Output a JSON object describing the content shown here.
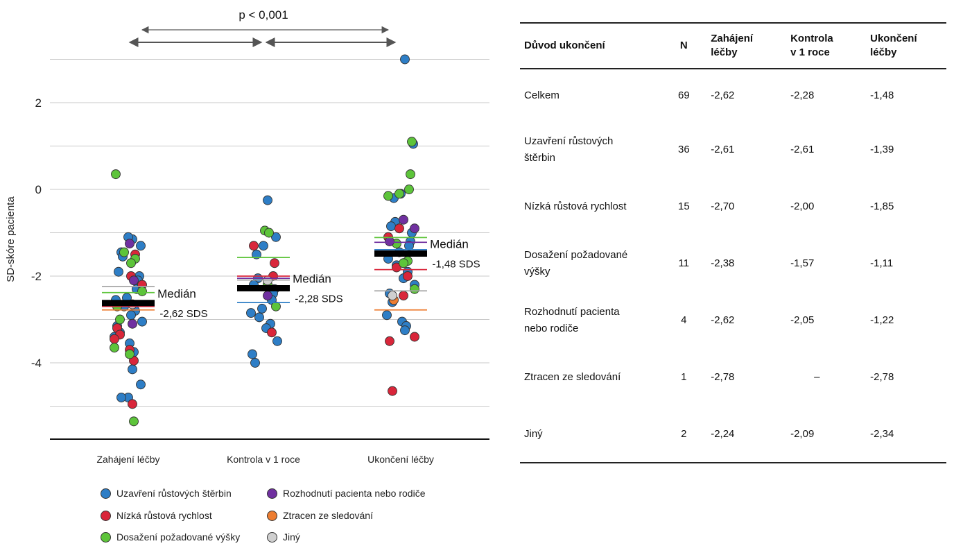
{
  "chart_data": {
    "type": "scatter",
    "ylabel": "SD-skóre pacienta",
    "yticks": [
      2,
      0,
      -2,
      -4
    ],
    "ylim": [
      -5.8,
      3.4
    ],
    "categories": [
      "Zahájení léčby",
      "Kontrola v 1 roce",
      "Ukončení léčby"
    ],
    "significance": "p < 0,001",
    "medians": [
      {
        "category": "Zahájení léčby",
        "value": -2.62,
        "label1": "Medián",
        "label2": "-2,62 SDS"
      },
      {
        "category": "Kontrola v 1 roce",
        "value": -2.28,
        "label1": "Medián",
        "label2": "-2,28 SDS"
      },
      {
        "category": "Ukončení léčby",
        "value": -1.48,
        "label1": "Medián",
        "label2": "-1,48 SDS"
      }
    ],
    "group_medians": [
      {
        "name": "Uzavření růstových štěrbin",
        "color": "#2e7ec6",
        "values": [
          -2.61,
          -2.61,
          -1.39
        ]
      },
      {
        "name": "Nízká růstová rychlost",
        "color": "#d9263a",
        "values": [
          -2.7,
          -2.0,
          -1.85
        ]
      },
      {
        "name": "Dosažení požadované výšky",
        "color": "#5dc43a",
        "values": [
          -2.38,
          -1.57,
          -1.11
        ]
      },
      {
        "name": "Rozhodnutí pacienta nebo rodiče",
        "color": "#7030a0",
        "values": [
          -2.62,
          -2.05,
          -1.22
        ]
      },
      {
        "name": "Ztracen ze sledování",
        "color": "#ed7d31",
        "values": [
          -2.78,
          null,
          -2.78
        ]
      },
      {
        "name": "Jiný",
        "color": "#a6a6a6",
        "values": [
          -2.24,
          -2.09,
          -2.34
        ]
      }
    ],
    "series": [
      {
        "name": "Uzavření růstových štěrbin",
        "color": "#2e7ec6",
        "points": [
          [
            0,
            -1.15
          ],
          [
            0,
            -1.3
          ],
          [
            0,
            -1.1
          ],
          [
            0,
            -1.45
          ],
          [
            0,
            -1.55
          ],
          [
            0,
            -1.9
          ],
          [
            0,
            -2.0
          ],
          [
            0,
            -2.1
          ],
          [
            0,
            -2.3
          ],
          [
            0,
            -2.5
          ],
          [
            0,
            -2.55
          ],
          [
            0,
            -2.7
          ],
          [
            0,
            -2.8
          ],
          [
            0,
            -2.9
          ],
          [
            0,
            -3.05
          ],
          [
            0,
            -3.15
          ],
          [
            0,
            -3.3
          ],
          [
            0,
            -3.4
          ],
          [
            0,
            -3.55
          ],
          [
            0,
            -3.75
          ],
          [
            0,
            -4.15
          ],
          [
            0,
            -4.5
          ],
          [
            0,
            -4.8
          ],
          [
            0,
            -4.8
          ],
          [
            1,
            -0.25
          ],
          [
            1,
            -1.1
          ],
          [
            1,
            -1.3
          ],
          [
            1,
            -1.5
          ],
          [
            1,
            -2.05
          ],
          [
            1,
            -2.2
          ],
          [
            1,
            -2.3
          ],
          [
            1,
            -2.4
          ],
          [
            1,
            -2.55
          ],
          [
            1,
            -2.75
          ],
          [
            1,
            -2.85
          ],
          [
            1,
            -2.95
          ],
          [
            1,
            -3.1
          ],
          [
            1,
            -3.2
          ],
          [
            1,
            -3.5
          ],
          [
            1,
            -3.8
          ],
          [
            1,
            -4.0
          ],
          [
            2,
            3.0
          ],
          [
            2,
            1.05
          ],
          [
            2,
            -0.1
          ],
          [
            2,
            -0.2
          ],
          [
            2,
            -0.75
          ],
          [
            2,
            -0.85
          ],
          [
            2,
            -1.0
          ],
          [
            2,
            -1.2
          ],
          [
            2,
            -1.3
          ],
          [
            2,
            -1.45
          ],
          [
            2,
            -1.6
          ],
          [
            2,
            -1.75
          ],
          [
            2,
            -1.9
          ],
          [
            2,
            -2.05
          ],
          [
            2,
            -2.2
          ],
          [
            2,
            -2.4
          ],
          [
            2,
            -2.6
          ],
          [
            2,
            -2.9
          ],
          [
            2,
            -3.05
          ],
          [
            2,
            -3.15
          ],
          [
            2,
            -3.25
          ]
        ]
      },
      {
        "name": "Nízká růstová rychlost",
        "color": "#d9263a",
        "points": [
          [
            0,
            -1.5
          ],
          [
            0,
            -2.0
          ],
          [
            0,
            -2.2
          ],
          [
            0,
            -3.2
          ],
          [
            0,
            -3.35
          ],
          [
            0,
            -3.45
          ],
          [
            0,
            -3.7
          ],
          [
            0,
            -3.95
          ],
          [
            0,
            -4.95
          ],
          [
            1,
            -1.3
          ],
          [
            1,
            -1.7
          ],
          [
            1,
            -2.0
          ],
          [
            1,
            -3.3
          ],
          [
            2,
            -0.9
          ],
          [
            2,
            -1.1
          ],
          [
            2,
            -1.8
          ],
          [
            2,
            -2.0
          ],
          [
            2,
            -2.45
          ],
          [
            2,
            -3.4
          ],
          [
            2,
            -3.5
          ],
          [
            2,
            -4.65
          ]
        ]
      },
      {
        "name": "Dosažení požadované výšky",
        "color": "#5dc43a",
        "points": [
          [
            0,
            0.35
          ],
          [
            0,
            -1.45
          ],
          [
            0,
            -1.6
          ],
          [
            0,
            -1.7
          ],
          [
            0,
            -2.35
          ],
          [
            0,
            -2.7
          ],
          [
            0,
            -3.0
          ],
          [
            0,
            -3.65
          ],
          [
            0,
            -3.8
          ],
          [
            0,
            -5.35
          ],
          [
            1,
            -0.95
          ],
          [
            1,
            -1.0
          ],
          [
            1,
            -2.2
          ],
          [
            1,
            -2.7
          ],
          [
            2,
            1.1
          ],
          [
            2,
            0.35
          ],
          [
            2,
            0.0
          ],
          [
            2,
            -0.1
          ],
          [
            2,
            -0.15
          ],
          [
            2,
            -1.25
          ],
          [
            2,
            -1.65
          ],
          [
            2,
            -1.7
          ],
          [
            2,
            -2.3
          ]
        ]
      },
      {
        "name": "Rozhodnutí pacienta nebo rodiče",
        "color": "#7030a0",
        "points": [
          [
            0,
            -1.25
          ],
          [
            0,
            -2.1
          ],
          [
            0,
            -3.1
          ],
          [
            1,
            -2.45
          ],
          [
            2,
            -0.7
          ],
          [
            2,
            -0.9
          ],
          [
            2,
            -1.2
          ]
        ]
      },
      {
        "name": "Ztracen ze sledování",
        "color": "#ed7d31",
        "points": [
          [
            2,
            -2.55
          ]
        ]
      },
      {
        "name": "Jiný",
        "color": "#cfcfcf",
        "points": [
          [
            0,
            -2.65
          ],
          [
            1,
            -2.1
          ],
          [
            2,
            -2.45
          ]
        ]
      }
    ]
  },
  "legend": [
    {
      "label": "Uzavření růstových štěrbin",
      "color": "#2e7ec6"
    },
    {
      "label": "Rozhodnutí pacienta nebo rodiče",
      "color": "#7030a0"
    },
    {
      "label": "Nízká růstová rychlost",
      "color": "#d9263a"
    },
    {
      "label": "Ztracen ze sledování",
      "color": "#ed7d31"
    },
    {
      "label": "Dosažení požadované výšky",
      "color": "#5dc43a"
    },
    {
      "label": "Jiný",
      "color": "#cfcfcf"
    }
  ],
  "table": {
    "headers": {
      "reason": "Důvod ukončení",
      "n": "N",
      "start1": "Zahájení",
      "start2": "léčby",
      "ctrl1": "Kontrola",
      "ctrl2": "v 1 roce",
      "end1": "Ukončení",
      "end2": "léčby"
    },
    "rows": [
      {
        "reason1": "Celkem",
        "reason2": "",
        "n": "69",
        "start": "-2,62",
        "ctrl": "-2,28",
        "end": "-1,48"
      },
      {
        "reason1": "Uzavření růstových",
        "reason2": "štěrbin",
        "n": "36",
        "start": "-2,61",
        "ctrl": "-2,61",
        "end": "-1,39"
      },
      {
        "reason1": "Nízká růstová rychlost",
        "reason2": "",
        "n": "15",
        "start": "-2,70",
        "ctrl": "-2,00",
        "end": "-1,85"
      },
      {
        "reason1": "Dosažení požadované",
        "reason2": "výšky",
        "n": "11",
        "start": "-2,38",
        "ctrl": "-1,57",
        "end": "-1,11"
      },
      {
        "reason1": "Rozhodnutí pacienta",
        "reason2": "nebo rodiče",
        "n": "4",
        "start": "-2,62",
        "ctrl": "-2,05",
        "end": "-1,22"
      },
      {
        "reason1": "Ztracen ze sledování",
        "reason2": "",
        "n": "1",
        "start": "-2,78",
        "ctrl": "–",
        "end": "-2,78"
      },
      {
        "reason1": "Jiný",
        "reason2": "",
        "n": "2",
        "start": "-2,24",
        "ctrl": "-2,09",
        "end": "-2,34"
      }
    ]
  }
}
